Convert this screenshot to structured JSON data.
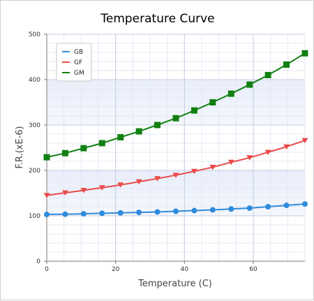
{
  "chart_data": {
    "type": "line",
    "title": "Temperature Curve",
    "xlabel": "Temperature (C)",
    "ylabel": "F.R.(xE-6)",
    "xlim": [
      0,
      75
    ],
    "ylim": [
      0,
      500
    ],
    "x_ticks": [
      "0",
      "20",
      "40",
      "60"
    ],
    "y_ticks": [
      "0",
      "100",
      "200",
      "300",
      "400",
      "500"
    ],
    "grid": true,
    "legend_position": "top-left",
    "x": [
      0,
      5.36,
      10.71,
      16.07,
      21.43,
      26.79,
      32.14,
      37.5,
      42.86,
      48.21,
      53.57,
      58.93,
      64.29,
      69.64,
      75
    ],
    "series": [
      {
        "name": "GB",
        "color": "#2f8bdc",
        "marker": "circle",
        "values": [
          103,
          103.5,
          104.5,
          105.5,
          106.5,
          107.5,
          108.5,
          110,
          111.5,
          113,
          115,
          117,
          120,
          123,
          126
        ]
      },
      {
        "name": "GF",
        "color": "#ea4a4a",
        "marker": "triangle-down",
        "values": [
          145,
          150.5,
          156,
          162,
          168,
          175,
          182,
          189.5,
          198,
          207,
          218,
          228,
          240,
          252,
          266
        ]
      },
      {
        "name": "GM",
        "color": "#118011",
        "marker": "square",
        "values": [
          229,
          238,
          249,
          260,
          273,
          286,
          300,
          315,
          332,
          350,
          369,
          389,
          410,
          433,
          458
        ]
      }
    ]
  }
}
